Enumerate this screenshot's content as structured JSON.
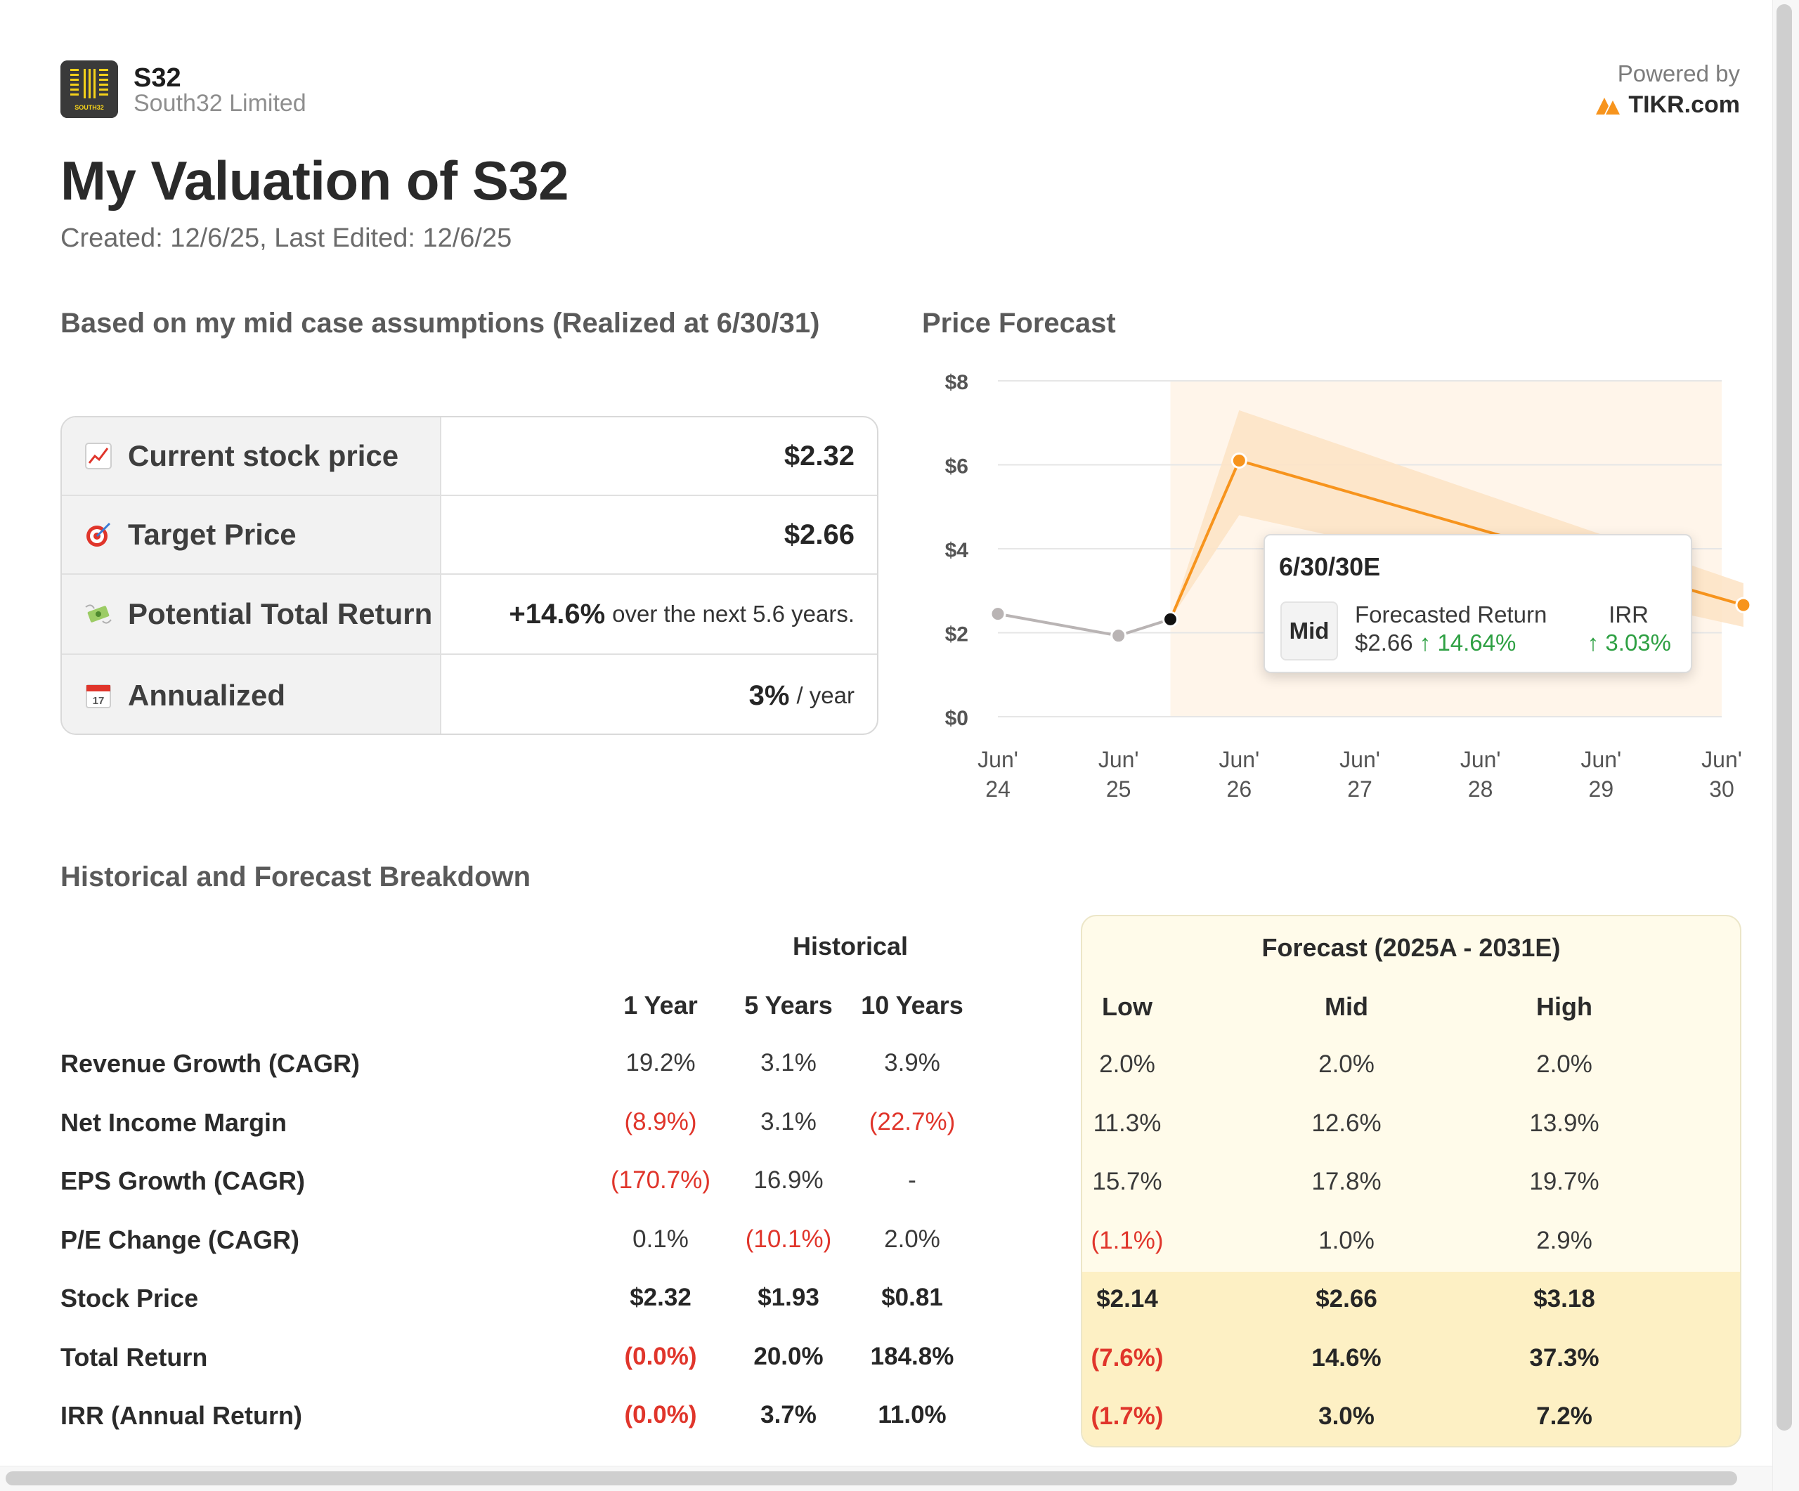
{
  "header": {
    "ticker": "S32",
    "company": "South32 Limited",
    "powered_by": "Powered by",
    "brand": "TIKR.com",
    "logo_text": "SOUTH32",
    "title": "My Valuation of S32",
    "subtitle": "Created: 12/6/25, Last Edited: 12/6/25"
  },
  "summary": {
    "heading": "Based on my mid case assumptions (Realized at 6/30/31)",
    "rows": [
      {
        "icon": "chart-up-icon",
        "label": "Current stock price",
        "value": "$2.32",
        "suffix": ""
      },
      {
        "icon": "target-icon",
        "label": "Target Price",
        "value": "$2.66",
        "suffix": ""
      },
      {
        "icon": "money-wings-icon",
        "label": "Potential Total Return",
        "value": "+14.6%",
        "suffix": "over the next 5.6 years."
      },
      {
        "icon": "calendar-icon",
        "label": "Annualized",
        "value": "3%",
        "suffix": "/ year"
      }
    ]
  },
  "chart": {
    "heading": "Price Forecast",
    "colors": {
      "historical": "#b9b4b4",
      "forecast": "#f7941d",
      "band": "#fde3c4",
      "region": "#fff5ea"
    },
    "chart_data": {
      "type": "line",
      "x_ticks": [
        {
          "top": "Jun'",
          "bottom": "24"
        },
        {
          "top": "Jun'",
          "bottom": "25"
        },
        {
          "top": "Jun'",
          "bottom": "26"
        },
        {
          "top": "Jun'",
          "bottom": "27"
        },
        {
          "top": "Jun'",
          "bottom": "28"
        },
        {
          "top": "Jun'",
          "bottom": "29"
        },
        {
          "top": "Jun'",
          "bottom": "30"
        }
      ],
      "y_ticks": [
        "$0",
        "$2",
        "$4",
        "$6",
        "$8"
      ],
      "ylim": [
        0,
        8
      ],
      "xlim": [
        2024.5,
        2030.5
      ],
      "grid": true,
      "historical": [
        {
          "x": 2024.5,
          "y": 2.45
        },
        {
          "x": 2025.5,
          "y": 1.93
        },
        {
          "x": 2025.93,
          "y": 2.32
        }
      ],
      "forecast": [
        {
          "x": 2025.93,
          "y": 2.32
        },
        {
          "x": 2026.5,
          "y": 6.1
        },
        {
          "x": 2030.68,
          "y": 2.66
        }
      ],
      "forecast_band": {
        "upper": [
          {
            "x": 2025.93,
            "y": 2.32
          },
          {
            "x": 2026.5,
            "y": 7.3
          },
          {
            "x": 2030.68,
            "y": 3.18
          }
        ],
        "lower": [
          {
            "x": 2025.93,
            "y": 2.32
          },
          {
            "x": 2026.5,
            "y": 4.8
          },
          {
            "x": 2030.68,
            "y": 2.14
          }
        ]
      }
    },
    "tooltip": {
      "date": "6/30/30E",
      "case": "Mid",
      "fr_label": "Forecasted Return",
      "fr_price": "$2.66",
      "fr_arrow": "↑",
      "fr_pct": "14.64%",
      "irr_label": "IRR",
      "irr_value": "↑ 3.03%"
    }
  },
  "breakdown": {
    "heading": "Historical and Forecast Breakdown",
    "historical_group": "Historical",
    "forecast_group": "Forecast (2025A - 2031E)",
    "columns": [
      "1 Year",
      "5 Years",
      "10 Years",
      "Low",
      "Mid",
      "High"
    ],
    "rows": [
      {
        "label": "Revenue Growth (CAGR)",
        "bold": false,
        "cells": [
          {
            "v": "19.2%",
            "neg": false
          },
          {
            "v": "3.1%",
            "neg": false
          },
          {
            "v": "3.9%",
            "neg": false
          },
          {
            "v": "2.0%",
            "neg": false
          },
          {
            "v": "2.0%",
            "neg": false
          },
          {
            "v": "2.0%",
            "neg": false
          }
        ]
      },
      {
        "label": "Net Income Margin",
        "bold": false,
        "cells": [
          {
            "v": "(8.9%)",
            "neg": true
          },
          {
            "v": "3.1%",
            "neg": false
          },
          {
            "v": "(22.7%)",
            "neg": true
          },
          {
            "v": "11.3%",
            "neg": false
          },
          {
            "v": "12.6%",
            "neg": false
          },
          {
            "v": "13.9%",
            "neg": false
          }
        ]
      },
      {
        "label": "EPS Growth (CAGR)",
        "bold": false,
        "cells": [
          {
            "v": "(170.7%)",
            "neg": true
          },
          {
            "v": "16.9%",
            "neg": false
          },
          {
            "v": "-",
            "neg": false
          },
          {
            "v": "15.7%",
            "neg": false
          },
          {
            "v": "17.8%",
            "neg": false
          },
          {
            "v": "19.7%",
            "neg": false
          }
        ]
      },
      {
        "label": "P/E Change (CAGR)",
        "bold": false,
        "cells": [
          {
            "v": "0.1%",
            "neg": false
          },
          {
            "v": "(10.1%)",
            "neg": true
          },
          {
            "v": "2.0%",
            "neg": false
          },
          {
            "v": "(1.1%)",
            "neg": true
          },
          {
            "v": "1.0%",
            "neg": false
          },
          {
            "v": "2.9%",
            "neg": false
          }
        ]
      },
      {
        "label": "Stock Price",
        "bold": true,
        "cells": [
          {
            "v": "$2.32",
            "neg": false
          },
          {
            "v": "$1.93",
            "neg": false
          },
          {
            "v": "$0.81",
            "neg": false
          },
          {
            "v": "$2.14",
            "neg": false
          },
          {
            "v": "$2.66",
            "neg": false
          },
          {
            "v": "$3.18",
            "neg": false
          }
        ]
      },
      {
        "label": "Total Return",
        "bold": true,
        "cells": [
          {
            "v": "(0.0%)",
            "neg": true
          },
          {
            "v": "20.0%",
            "neg": false
          },
          {
            "v": "184.8%",
            "neg": false
          },
          {
            "v": "(7.6%)",
            "neg": true
          },
          {
            "v": "14.6%",
            "neg": false
          },
          {
            "v": "37.3%",
            "neg": false
          }
        ]
      },
      {
        "label": "IRR (Annual Return)",
        "bold": true,
        "cells": [
          {
            "v": "(0.0%)",
            "neg": true
          },
          {
            "v": "3.7%",
            "neg": false
          },
          {
            "v": "11.0%",
            "neg": false
          },
          {
            "v": "(1.7%)",
            "neg": true
          },
          {
            "v": "3.0%",
            "neg": false
          },
          {
            "v": "7.2%",
            "neg": false
          }
        ]
      }
    ]
  }
}
